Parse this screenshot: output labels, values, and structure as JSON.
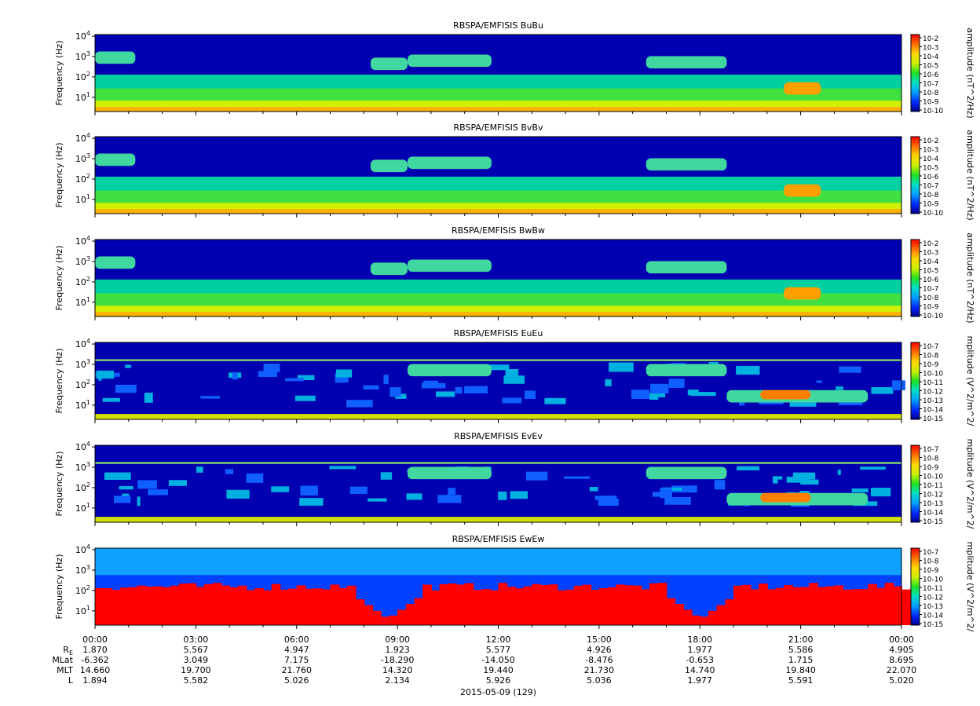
{
  "chart_data": {
    "type": "heatmap",
    "panels": [
      {
        "title": "RBSPA/EMFISIS  BuBu",
        "ylabel": "Frequency (Hz)",
        "yscale": "log",
        "ylim": [
          2,
          12000
        ],
        "colorbar": {
          "label": "amplitude (nT^2/Hz)",
          "ticks": [
            "10-2",
            "10-3",
            "10-4",
            "10-5",
            "10-6",
            "10-7",
            "10-8",
            "10-9",
            "10-10"
          ]
        }
      },
      {
        "title": "RBSPA/EMFISIS  BvBv",
        "ylabel": "Frequency (Hz)",
        "yscale": "log",
        "ylim": [
          2,
          12000
        ],
        "colorbar": {
          "label": "amplitude (nT^2/Hz)",
          "ticks": [
            "10-2",
            "10-3",
            "10-4",
            "10-5",
            "10-6",
            "10-7",
            "10-8",
            "10-9",
            "10-10"
          ]
        }
      },
      {
        "title": "RBSPA/EMFISIS  BwBw",
        "ylabel": "Frequency (Hz)",
        "yscale": "log",
        "ylim": [
          2,
          12000
        ],
        "colorbar": {
          "label": "amplitude (nT^2/Hz)",
          "ticks": [
            "10-2",
            "10-3",
            "10-4",
            "10-5",
            "10-6",
            "10-7",
            "10-8",
            "10-9",
            "10-10"
          ]
        }
      },
      {
        "title": "RBSPA/EMFISIS  EuEu",
        "ylabel": "Frequency (Hz)",
        "yscale": "log",
        "ylim": [
          2,
          12000
        ],
        "colorbar": {
          "label": "mplitude (V^2/m^2/",
          "ticks": [
            "10-7",
            "10-8",
            "10-9",
            "10-10",
            "10-11",
            "10-12",
            "10-13",
            "10-14",
            "10-15"
          ]
        }
      },
      {
        "title": "RBSPA/EMFISIS  EvEv",
        "ylabel": "Frequency (Hz)",
        "yscale": "log",
        "ylim": [
          2,
          12000
        ],
        "colorbar": {
          "label": "mplitude (V^2/m^2/",
          "ticks": [
            "10-7",
            "10-8",
            "10-9",
            "10-10",
            "10-11",
            "10-12",
            "10-13",
            "10-14",
            "10-15"
          ]
        }
      },
      {
        "title": "RBSPA/EMFISIS  EwEw",
        "ylabel": "Frequency (Hz)",
        "yscale": "log",
        "ylim": [
          2,
          12000
        ],
        "colorbar": {
          "label": "mplitude (V^2/m^2/",
          "ticks": [
            "10-7",
            "10-8",
            "10-9",
            "10-10",
            "10-11",
            "10-12",
            "10-13",
            "10-14",
            "10-15"
          ]
        }
      }
    ],
    "y_ticks": [
      {
        "base": "10",
        "exp": "4"
      },
      {
        "base": "10",
        "exp": "3"
      },
      {
        "base": "10",
        "exp": "2"
      },
      {
        "base": "10",
        "exp": "1"
      }
    ],
    "x_ticks": [
      "00:00",
      "03:00",
      "06:00",
      "09:00",
      "12:00",
      "15:00",
      "18:00",
      "21:00",
      "00:00"
    ],
    "x_hours": [
      0,
      3,
      6,
      9,
      12,
      15,
      18,
      21,
      24
    ],
    "ephemeris": [
      {
        "label": "R",
        "sub": "E",
        "values": [
          "1.870",
          "5.567",
          "4.947",
          "1.923",
          "5.577",
          "4.926",
          "1.977",
          "5.586",
          "4.905"
        ]
      },
      {
        "label": "MLat",
        "values": [
          "-6.362",
          "3.049",
          "7.175",
          "-18.290",
          "-14.050",
          "-8.476",
          "-0.653",
          "1.715",
          "8.695"
        ]
      },
      {
        "label": "MLT",
        "values": [
          "14.660",
          "19.700",
          "21.760",
          "14.320",
          "19.440",
          "21.730",
          "14.740",
          "19.840",
          "22.070"
        ]
      },
      {
        "label": "L",
        "values": [
          "1.894",
          "5.582",
          "5.026",
          "2.134",
          "5.926",
          "5.036",
          "1.977",
          "5.591",
          "5.020"
        ]
      }
    ],
    "date_label": "2015-05-09 (129)"
  }
}
